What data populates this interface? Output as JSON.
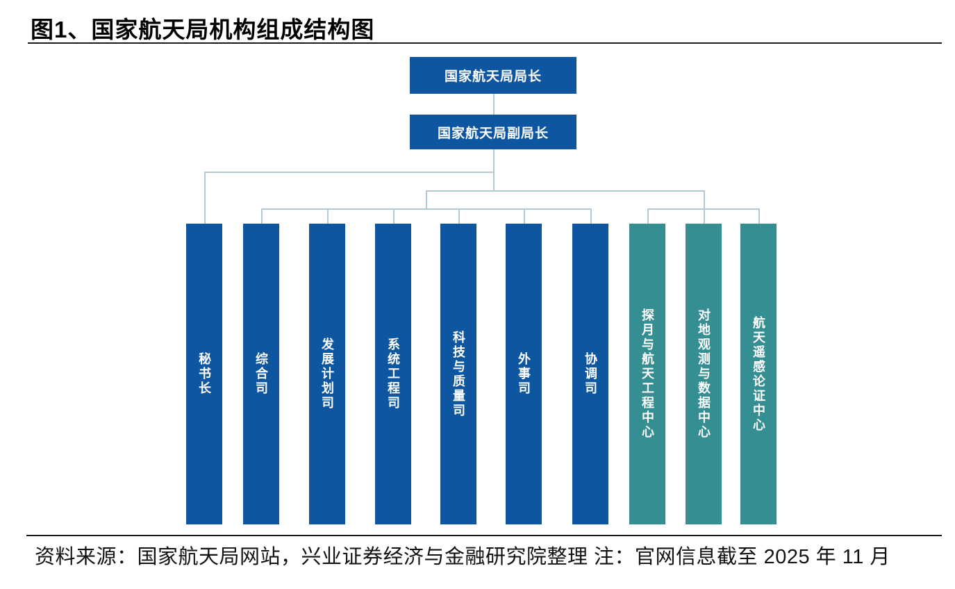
{
  "figure": {
    "title": "图1、国家航天局机构组成结构图",
    "source_note": "资料来源：国家航天局网站，兴业证券经济与金融研究院整理  注：官网信息截至 2025 年 11 月"
  },
  "org_chart": {
    "nodes": {
      "director": "国家航天局局长",
      "deputy_director": "国家航天局副局长"
    },
    "departments": [
      {
        "label": "秘书长",
        "type": "department"
      },
      {
        "label": "综合司",
        "type": "department"
      },
      {
        "label": "发展计划司",
        "type": "department"
      },
      {
        "label": "系统工程司",
        "type": "department"
      },
      {
        "label": "科技与质量司",
        "type": "department"
      },
      {
        "label": "外事司",
        "type": "department"
      },
      {
        "label": "协调司",
        "type": "department"
      },
      {
        "label": "探月与航天工程中心",
        "type": "center"
      },
      {
        "label": "对地观测与数据中心",
        "type": "center"
      },
      {
        "label": "航天遥感论证中心",
        "type": "center"
      }
    ],
    "colors": {
      "department_fill": "#0e56a0",
      "center_fill": "#358f92",
      "connector_line": "#b3c9d6",
      "box_text": "#ffffff"
    }
  }
}
